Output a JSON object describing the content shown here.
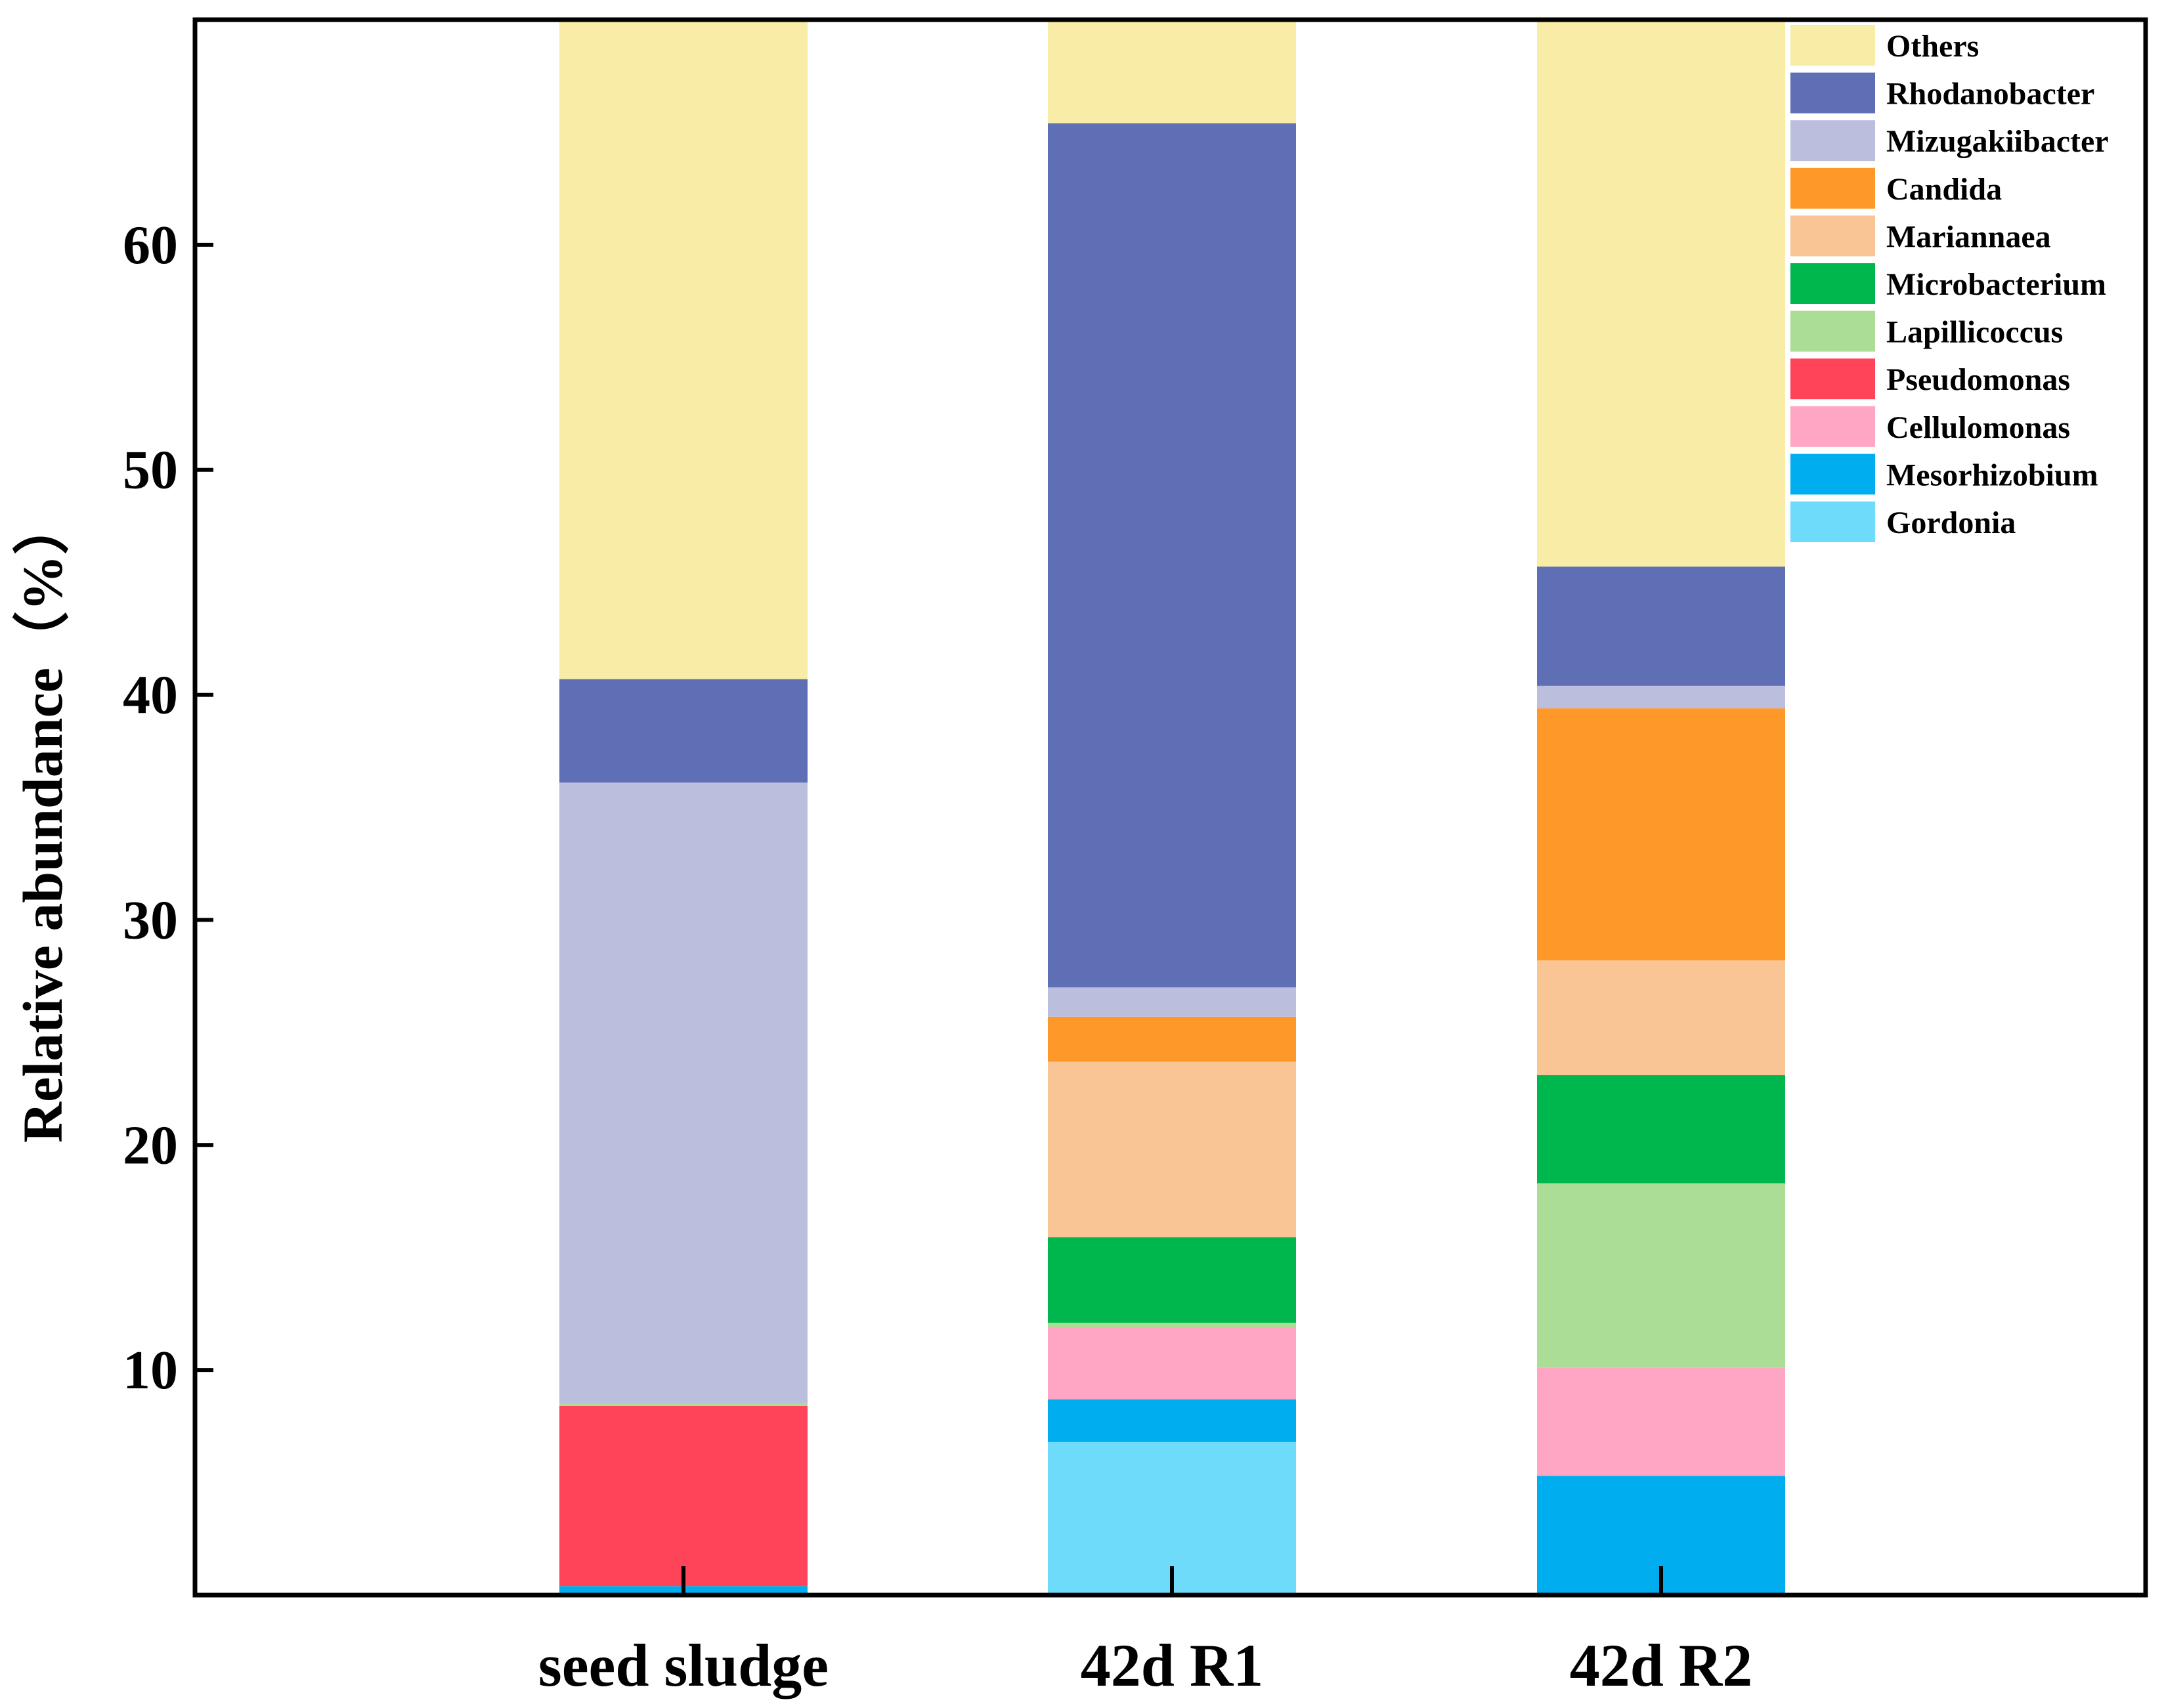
{
  "chart_data": {
    "type": "bar",
    "stacked": true,
    "title": "",
    "xlabel": "",
    "ylabel": "Relative abundance（%）",
    "categories": [
      "seed sludge",
      "42d R1",
      "42d R2"
    ],
    "ylim": [
      0,
      70
    ],
    "yticks": [
      10,
      20,
      30,
      40,
      50,
      60
    ],
    "legend_position": "top-right",
    "series": [
      {
        "name": "Gordonia",
        "color": "#6fdbfb",
        "values": [
          0.0,
          6.8,
          0.1
        ]
      },
      {
        "name": "Mesorhizobium",
        "color": "#00adef",
        "values": [
          0.4,
          1.9,
          5.2
        ]
      },
      {
        "name": "Cellulomonas",
        "color": "#ffa6c4",
        "values": [
          0.0,
          3.2,
          4.8
        ]
      },
      {
        "name": "Pseudomonas",
        "color": "#ff4358",
        "values": [
          8.0,
          0.0,
          0.0
        ]
      },
      {
        "name": "Lapillicoccus",
        "color": "#acdd96",
        "values": [
          0.1,
          0.2,
          8.2
        ]
      },
      {
        "name": "Microbacterium",
        "color": "#00b74d",
        "values": [
          0.0,
          3.8,
          4.8
        ]
      },
      {
        "name": "Mariannaea",
        "color": "#fac594",
        "values": [
          0.0,
          7.8,
          5.1
        ]
      },
      {
        "name": "Candida",
        "color": "#fe9828",
        "values": [
          0.0,
          2.0,
          11.2
        ]
      },
      {
        "name": "Mizugakiibacter",
        "color": "#bcbedd",
        "values": [
          27.6,
          1.3,
          1.0
        ]
      },
      {
        "name": "Rhodanobacter",
        "color": "#5f6fb5",
        "values": [
          4.6,
          38.4,
          5.3
        ]
      },
      {
        "name": "Others",
        "color": "#f9eca6",
        "values": [
          29.3,
          4.6,
          24.3
        ]
      }
    ]
  }
}
